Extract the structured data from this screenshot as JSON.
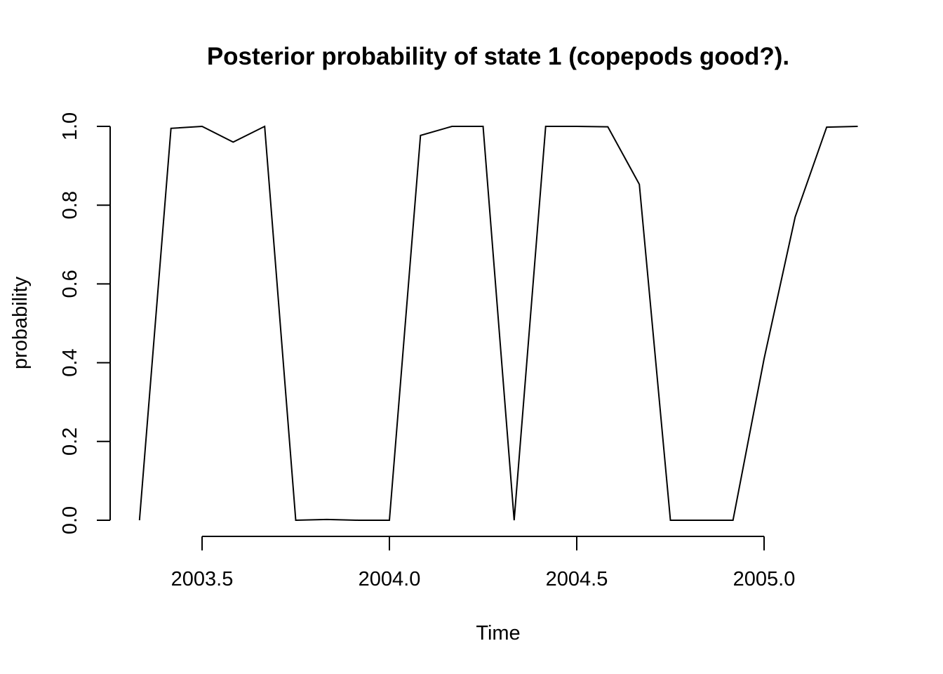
{
  "chart_data": {
    "type": "line",
    "title": "Posterior probability of state 1 (copepods good?).",
    "xlabel": "Time",
    "ylabel": "probability",
    "xlim": [
      3.333,
      5.25
    ],
    "ylim": [
      0,
      1
    ],
    "x_ticks": [
      {
        "value": 2003.5,
        "label": "2003.5"
      },
      {
        "value": 2004.0,
        "label": "2004.0"
      },
      {
        "value": 2004.5,
        "label": "2004.5"
      },
      {
        "value": 2005.0,
        "label": "2005.0"
      }
    ],
    "y_ticks": [
      {
        "value": 0.0,
        "label": "0.0"
      },
      {
        "value": 0.2,
        "label": "0.2"
      },
      {
        "value": 0.4,
        "label": "0.4"
      },
      {
        "value": 0.6,
        "label": "0.6"
      },
      {
        "value": 0.8,
        "label": "0.8"
      },
      {
        "value": 1.0,
        "label": "1.0"
      }
    ],
    "grid": false,
    "legend": "none",
    "line_color": "#000000",
    "x": [
      2003.333,
      2003.417,
      2003.5,
      2003.583,
      2003.667,
      2003.75,
      2003.833,
      2003.917,
      2004.0,
      2004.083,
      2004.167,
      2004.25,
      2004.333,
      2004.417,
      2004.5,
      2004.583,
      2004.667,
      2004.75,
      2004.833,
      2004.917,
      2005.0,
      2005.083,
      2005.167,
      2005.25
    ],
    "values": [
      0.0,
      0.995,
      1.0,
      0.96,
      1.0,
      0.0,
      0.002,
      0.0,
      0.0,
      0.977,
      1.0,
      1.0,
      0.0,
      1.0,
      1.0,
      0.999,
      0.853,
      0.0,
      0.0,
      0.0,
      0.41,
      0.77,
      0.998,
      1.0
    ]
  }
}
